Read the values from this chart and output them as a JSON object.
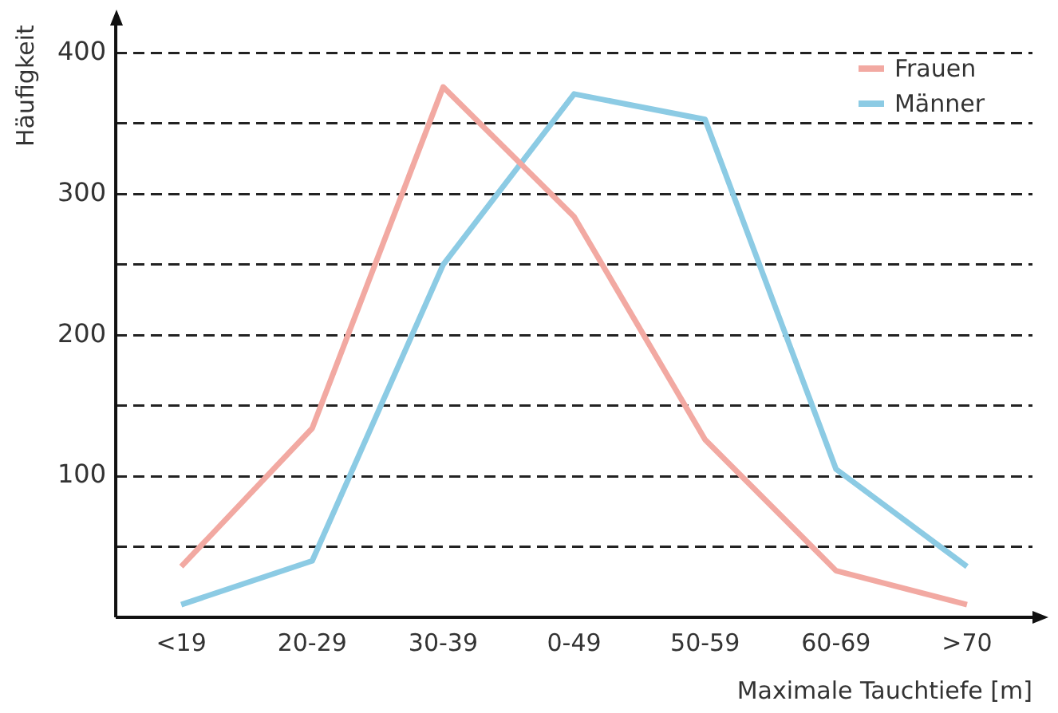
{
  "chart_data": {
    "type": "line",
    "xlabel": "Maximale Tauchtiefe [m]",
    "ylabel": "Häufigkeit",
    "categories": [
      "<19",
      "20-29",
      "30-39",
      "0-49",
      "50-59",
      "60-69",
      ">70"
    ],
    "series": [
      {
        "name": "Frauen",
        "color": "#f2a9a2",
        "values": [
          36,
          134,
          376,
          284,
          126,
          33,
          9
        ]
      },
      {
        "name": "Männer",
        "color": "#8ccbe4",
        "values": [
          9,
          40,
          250,
          371,
          353,
          105,
          36
        ]
      }
    ],
    "ylim": [
      0,
      420
    ],
    "yticks": [
      {
        "value": 50,
        "label": null
      },
      100,
      {
        "value": 150,
        "label": null
      },
      200,
      {
        "value": 250,
        "label": null
      },
      300,
      {
        "value": 350,
        "label": null
      },
      400
    ],
    "grid": "y",
    "legend": "top right",
    "marker": "none",
    "line_style": "solid"
  }
}
